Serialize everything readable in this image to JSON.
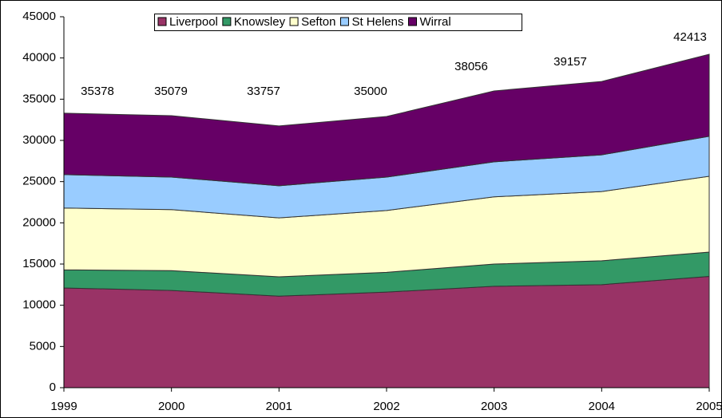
{
  "chart_data": {
    "type": "stacked_area",
    "categories": [
      "1999",
      "2000",
      "2001",
      "2002",
      "2003",
      "2004",
      "2005"
    ],
    "series": [
      {
        "name": "Liverpool",
        "color": "#993366",
        "values": [
          12100,
          11800,
          11100,
          11600,
          12300,
          12500,
          13500
        ]
      },
      {
        "name": "Knowsley",
        "color": "#339966",
        "values": [
          2200,
          2400,
          2350,
          2400,
          2700,
          2900,
          2950
        ]
      },
      {
        "name": "Sefton",
        "color": "#ffffcc",
        "values": [
          7500,
          7400,
          7150,
          7500,
          8150,
          8400,
          9200
        ]
      },
      {
        "name": "St Helens",
        "color": "#99ccff",
        "values": [
          4050,
          3950,
          3900,
          4050,
          4250,
          4450,
          4850
        ]
      },
      {
        "name": "Wirral",
        "color": "#660066",
        "values": [
          7450,
          7450,
          7250,
          7350,
          8600,
          8900,
          9950
        ]
      }
    ],
    "annotations": [
      "35378",
      "35079",
      "33757",
      "35000",
      "38056",
      "39157",
      "42413"
    ],
    "ylim": [
      0,
      45000
    ],
    "yticks": [
      0,
      5000,
      10000,
      15000,
      20000,
      25000,
      30000,
      35000,
      40000,
      45000
    ],
    "legend": "top"
  }
}
